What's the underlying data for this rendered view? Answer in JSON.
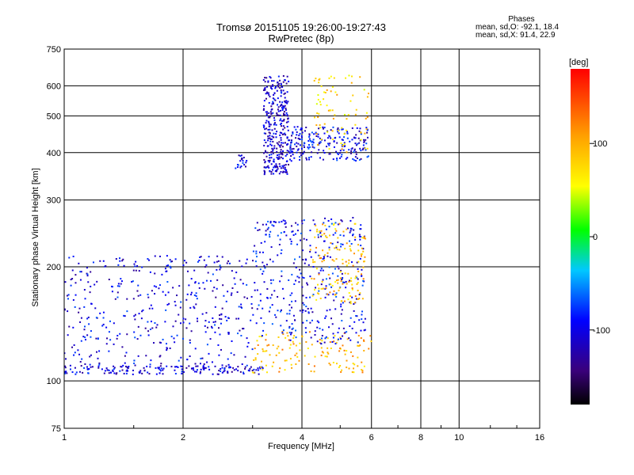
{
  "chart_data": {
    "type": "scatter",
    "title": "Tromsø 20151105 19:26:00-19:27:43",
    "subtitle": "RwPretec (8p)",
    "xlabel": "Frequency [MHz]",
    "ylabel": "Stationary phase Virtual Height [km]",
    "x_scale": "log",
    "y_scale": "log",
    "xlim": [
      1,
      16
    ],
    "ylim": [
      75,
      750
    ],
    "x_ticks": [
      1,
      2,
      4,
      6,
      8,
      10,
      16
    ],
    "y_ticks": [
      75,
      100,
      200,
      300,
      400,
      500,
      600,
      750
    ],
    "grid": true,
    "phase_stats": {
      "title": "Phases",
      "line_o": "mean, sd,O: -92.1, 18.4",
      "line_x": "mean, sd,X:  91.4, 22.9"
    },
    "colorbar": {
      "label": "[deg]",
      "range": [
        -180,
        180
      ],
      "ticks": [
        100,
        0,
        -100
      ]
    },
    "traces": [
      {
        "name": "",
        "f0": 1.0,
        "f1": 3.2,
        "h0": 104,
        "h1": 110,
        "phase_mean": -105,
        "n": 160
      },
      {
        "name": "",
        "f0": 3.0,
        "f1": 6.0,
        "h0": 105,
        "h1": 135,
        "phase_mean": 95,
        "n": 140
      },
      {
        "name": "",
        "f0": 1.0,
        "f1": 3.0,
        "h0": 108,
        "h1": 215,
        "phase_mean": -100,
        "n": 420
      },
      {
        "name": "",
        "f0": 3.0,
        "f1": 5.8,
        "h0": 125,
        "h1": 270,
        "phase_mean": -95,
        "n": 380
      },
      {
        "name": "",
        "f0": 4.2,
        "f1": 5.8,
        "h0": 160,
        "h1": 260,
        "phase_mean": 90,
        "n": 140
      },
      {
        "name": "",
        "f0": 3.2,
        "f1": 3.7,
        "h0": 350,
        "h1": 640,
        "phase_mean": -110,
        "n": 320
      },
      {
        "name": "",
        "f0": 3.7,
        "f1": 5.9,
        "h0": 380,
        "h1": 470,
        "phase_mean": -100,
        "n": 220
      },
      {
        "name": "",
        "f0": 4.3,
        "f1": 5.9,
        "h0": 400,
        "h1": 640,
        "phase_mean": 80,
        "n": 80
      },
      {
        "name": "",
        "f0": 2.7,
        "f1": 2.9,
        "h0": 360,
        "h1": 395,
        "phase_mean": -100,
        "n": 20
      }
    ]
  }
}
